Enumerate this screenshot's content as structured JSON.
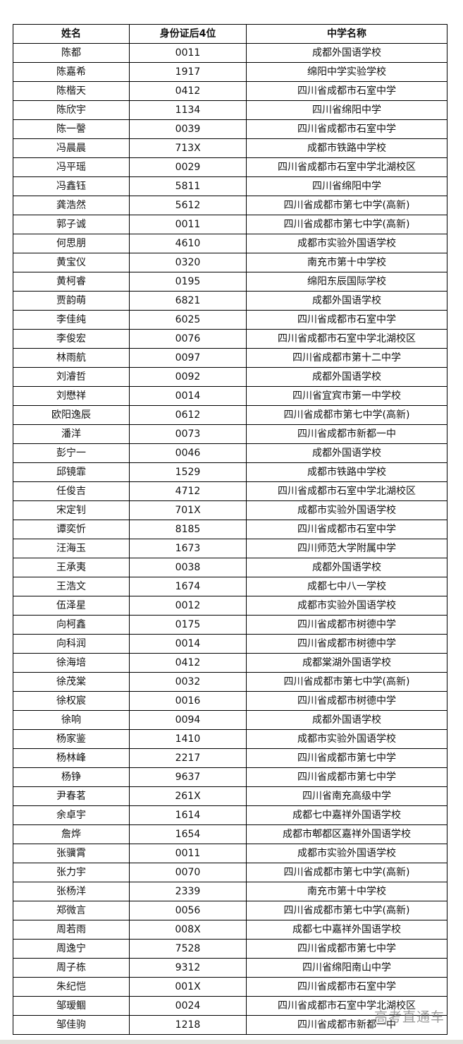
{
  "headers": [
    "姓名",
    "身份证后4位",
    "中学名称"
  ],
  "rows": [
    [
      "陈都",
      "0011",
      "成都外国语学校"
    ],
    [
      "陈嘉希",
      "1917",
      "绵阳中学实验学校"
    ],
    [
      "陈楷天",
      "0412",
      "四川省成都市石室中学"
    ],
    [
      "陈欣宇",
      "1134",
      "四川省绵阳中学"
    ],
    [
      "陈一謦",
      "0039",
      "四川省成都市石室中学"
    ],
    [
      "冯晨晨",
      "713X",
      "成都市铁路中学校"
    ],
    [
      "冯平瑶",
      "0029",
      "四川省成都市石室中学北湖校区"
    ],
    [
      "冯鑫钰",
      "5811",
      "四川省绵阳中学"
    ],
    [
      "龚浩然",
      "5612",
      "四川省成都市第七中学(高新)"
    ],
    [
      "郭子诚",
      "0011",
      "四川省成都市第七中学(高新)"
    ],
    [
      "何思朋",
      "4610",
      "成都市实验外国语学校"
    ],
    [
      "黄宝仪",
      "0320",
      "南充市第十中学校"
    ],
    [
      "黄柯睿",
      "0195",
      "绵阳东辰国际学校"
    ],
    [
      "贾韵萌",
      "6821",
      "成都外国语学校"
    ],
    [
      "李佳纯",
      "6025",
      "四川省成都市石室中学"
    ],
    [
      "李俊宏",
      "0076",
      "四川省成都市石室中学北湖校区"
    ],
    [
      "林雨航",
      "0097",
      "四川省成都市第十二中学"
    ],
    [
      "刘濬哲",
      "0092",
      "成都外国语学校"
    ],
    [
      "刘懋祥",
      "0014",
      "四川省宜宾市第一中学校"
    ],
    [
      "欧阳逸辰",
      "0612",
      "四川省成都市第七中学(高新)"
    ],
    [
      "潘洋",
      "0073",
      "四川省成都市新都一中"
    ],
    [
      "彭宁一",
      "0046",
      "成都外国语学校"
    ],
    [
      "邱镜霏",
      "1529",
      "成都市铁路中学校"
    ],
    [
      "任俊吉",
      "4712",
      "四川省成都市石室中学北湖校区"
    ],
    [
      "宋定钊",
      "701X",
      "成都市实验外国语学校"
    ],
    [
      "谭奕忻",
      "8185",
      "四川省成都市石室中学"
    ],
    [
      "汪海玉",
      "1673",
      "四川师范大学附属中学"
    ],
    [
      "王承夷",
      "0038",
      "成都外国语学校"
    ],
    [
      "王浩文",
      "1674",
      "成都七中八一学校"
    ],
    [
      "伍泽星",
      "0012",
      "成都市实验外国语学校"
    ],
    [
      "向柯鑫",
      "0175",
      "四川省成都市树德中学"
    ],
    [
      "向科润",
      "0014",
      "四川省成都市树德中学"
    ],
    [
      "徐海培",
      "0412",
      "成都棠湖外国语学校"
    ],
    [
      "徐茂棠",
      "0032",
      "四川省成都市第七中学(高新)"
    ],
    [
      "徐权宸",
      "0016",
      "四川省成都市树德中学"
    ],
    [
      "徐响",
      "0094",
      "成都外国语学校"
    ],
    [
      "杨家鉴",
      "1410",
      "成都市实验外国语学校"
    ],
    [
      "杨林峰",
      "2217",
      "四川省成都市第七中学"
    ],
    [
      "杨铮",
      "9637",
      "四川省成都市第七中学"
    ],
    [
      "尹春茗",
      "261X",
      "四川省南充高级中学"
    ],
    [
      "余卓宇",
      "1614",
      "成都七中嘉祥外国语学校"
    ],
    [
      "詹烨",
      "1654",
      "成都市郫都区嘉祥外国语学校"
    ],
    [
      "张骥霄",
      "0011",
      "成都市实验外国语学校"
    ],
    [
      "张力宇",
      "0070",
      "四川省成都市第七中学(高新)"
    ],
    [
      "张杨洋",
      "2339",
      "南充市第十中学校"
    ],
    [
      "郑微言",
      "0056",
      "四川省成都市第七中学(高新)"
    ],
    [
      "周若雨",
      "008X",
      "成都七中嘉祥外国语学校"
    ],
    [
      "周逸宁",
      "7528",
      "四川省成都市第七中学"
    ],
    [
      "周子栋",
      "9312",
      "四川省绵阳南山中学"
    ],
    [
      "朱纪恺",
      "001X",
      "四川省成都市石室中学"
    ],
    [
      "邹瑷鲴",
      "0024",
      "四川省成都市石室中学北湖校区"
    ],
    [
      "邹佳驹",
      "1218",
      "四川省成都市新都一中"
    ]
  ],
  "watermark": "高考直通车"
}
